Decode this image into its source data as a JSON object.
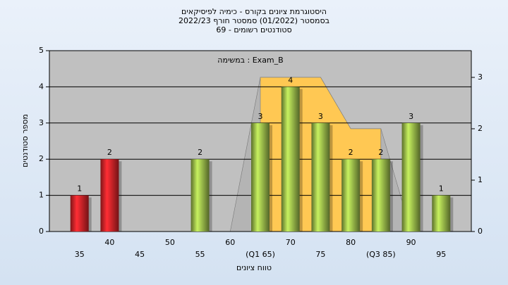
{
  "chart_data": {
    "type": "bar",
    "title": [
      "היסטוגרמת ציונים בקורס - כימיה לפיסיקאים",
      "בסמסטר (01/2022) סמסטר חורף 2022/23",
      "סטודנטים רשומים - 69"
    ],
    "annotation": "במשימה : Exam_B",
    "ylabel": "מספר סטודנטים",
    "xlabel": "טווח ציונים",
    "categories": [
      "35",
      "40",
      "45",
      "50",
      "55",
      "60",
      "(Q1 65)",
      "70",
      "75",
      "80",
      "(Q3 85)",
      "90",
      "95"
    ],
    "values": [
      1,
      2,
      0,
      0,
      2,
      0,
      3,
      4,
      3,
      2,
      2,
      3,
      1
    ],
    "bar_colors": [
      "#e8262b",
      "#e8262b",
      "#a6c94f",
      "#a6c94f",
      "#a6c94f",
      "#a6c94f",
      "#a6c94f",
      "#a6c94f",
      "#a6c94f",
      "#a6c94f",
      "#a6c94f",
      "#a6c94f",
      "#a6c94f"
    ],
    "ylim": [
      0,
      5
    ],
    "yticks": [
      0,
      1,
      2,
      3,
      4,
      5
    ],
    "y2lim": [
      0,
      3.52
    ],
    "y2ticks": [
      0,
      1,
      2,
      3
    ],
    "areas": [
      {
        "color": "#b4b4b4",
        "axis": "y2",
        "values": [
          null,
          null,
          null,
          null,
          null,
          0,
          3,
          3,
          3,
          2,
          2,
          0,
          null
        ]
      },
      {
        "color": "#ffc853",
        "axis": "y2",
        "values": [
          null,
          null,
          null,
          null,
          null,
          null,
          3,
          3,
          3,
          2,
          2,
          null,
          null
        ]
      }
    ],
    "grid": true
  }
}
